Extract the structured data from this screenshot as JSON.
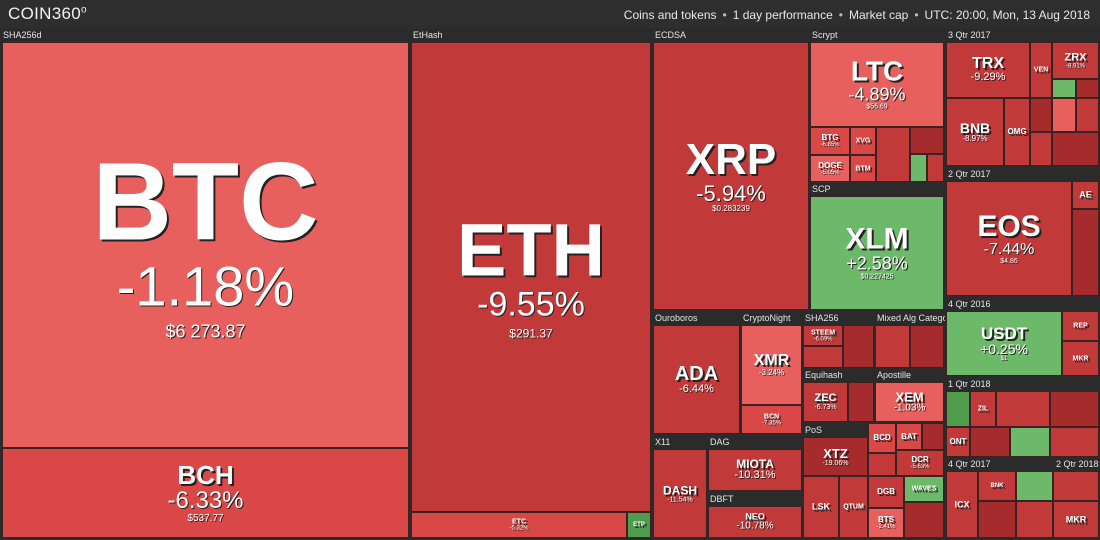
{
  "header": {
    "logo": "COIN360",
    "logo_mark": "o",
    "crumbs": [
      "Coins and tokens",
      "1 day performance",
      "Market cap",
      "UTC: 20:00, Mon, 13 Aug 2018"
    ]
  },
  "colors": {
    "light_red": "#e8605d",
    "red": "#d94846",
    "dark_red": "#c2393a",
    "deep_red": "#a62b2d",
    "green": "#6cb96a",
    "bg": "#2b2b2b"
  },
  "sections": {
    "sha256d": "SHA256d",
    "ethash": "EtHash",
    "ecdsa": "ECDSA",
    "scrypt": "Scrypt",
    "q3_2017": "3 Qtr 2017",
    "scp": "SCP",
    "q2_2017": "2 Qtr 2017",
    "ouroboros": "Ouroboros",
    "cryptonight": "CryptoNight",
    "sha256": "SHA256",
    "mixed": "Mixed Alg Catego",
    "q4_2016": "4 Qtr 2016",
    "equihash": "Equihash",
    "apostille": "Apostille",
    "q1_2018": "1 Qtr 2018",
    "pos": "PoS",
    "x11": "X11",
    "dag": "DAG",
    "dbft": "DBFT",
    "q4_2017": "4 Qtr 2017",
    "q2_2018": "2 Qtr 2018"
  },
  "coins": {
    "btc": {
      "symbol": "BTC",
      "change": "-1.18%",
      "price": "$6 273.87"
    },
    "bch": {
      "symbol": "BCH",
      "change": "-6.33%",
      "price": "$537.77"
    },
    "eth": {
      "symbol": "ETH",
      "change": "-9.55%",
      "price": "$291.37"
    },
    "etc": {
      "symbol": "ETC",
      "change": "-5.32%"
    },
    "etp": {
      "symbol": "ETP"
    },
    "xrp": {
      "symbol": "XRP",
      "change": "-5.94%",
      "price": "$0.283239"
    },
    "ltc": {
      "symbol": "LTC",
      "change": "-4.89%",
      "price": "$56.69"
    },
    "btg": {
      "symbol": "BTG",
      "change": "-6.85%"
    },
    "xvg": {
      "symbol": "XVG"
    },
    "doge": {
      "symbol": "DOGE",
      "change": "-5.05%"
    },
    "btm": {
      "symbol": "BTM"
    },
    "trx": {
      "symbol": "TRX",
      "change": "-9.29%"
    },
    "zrx": {
      "symbol": "ZRX",
      "change": "-8.91%"
    },
    "ven": {
      "symbol": "VEN"
    },
    "bnb": {
      "symbol": "BNB",
      "change": "-8.97%"
    },
    "omg": {
      "symbol": "OMG"
    },
    "xlm": {
      "symbol": "XLM",
      "change": "+2.58%",
      "price": "$0.227425"
    },
    "eos": {
      "symbol": "EOS",
      "change": "-7.44%",
      "price": "$4.86"
    },
    "ae": {
      "symbol": "AE"
    },
    "ada": {
      "symbol": "ADA",
      "change": "-6.44%"
    },
    "xmr": {
      "symbol": "XMR",
      "change": "-3.24%"
    },
    "bcn": {
      "symbol": "BCN",
      "change": "-7.35%"
    },
    "steem": {
      "symbol": "STEEM",
      "change": "-6.09%"
    },
    "usdt": {
      "symbol": "USDT",
      "change": "+0.25%",
      "price": "$1"
    },
    "rep": {
      "symbol": "REP"
    },
    "mkr2": {
      "symbol": "MKR"
    },
    "zec": {
      "symbol": "ZEC",
      "change": "-6.73%"
    },
    "xem": {
      "symbol": "XEM",
      "change": "-1.03%"
    },
    "xtz": {
      "symbol": "XTZ",
      "change": "-19.06%"
    },
    "bcd": {
      "symbol": "BCD"
    },
    "bat": {
      "symbol": "BAT"
    },
    "dcr": {
      "symbol": "DCR",
      "change": "-5.63%"
    },
    "ont": {
      "symbol": "ONT"
    },
    "zil": {
      "symbol": "ZIL"
    },
    "dash": {
      "symbol": "DASH",
      "change": "-11.54%"
    },
    "miota": {
      "symbol": "MIOTA",
      "change": "-10.31%"
    },
    "neo": {
      "symbol": "NEO",
      "change": "-10.78%"
    },
    "lsk": {
      "symbol": "LSK"
    },
    "qtum": {
      "symbol": "QTUM"
    },
    "dgb": {
      "symbol": "DGB"
    },
    "bts": {
      "symbol": "BTS",
      "change": "-2.41%"
    },
    "waves": {
      "symbol": "WAVES"
    },
    "icx": {
      "symbol": "ICX"
    },
    "bnk": {
      "symbol": "BNK"
    },
    "mkr": {
      "symbol": "MKR"
    }
  }
}
